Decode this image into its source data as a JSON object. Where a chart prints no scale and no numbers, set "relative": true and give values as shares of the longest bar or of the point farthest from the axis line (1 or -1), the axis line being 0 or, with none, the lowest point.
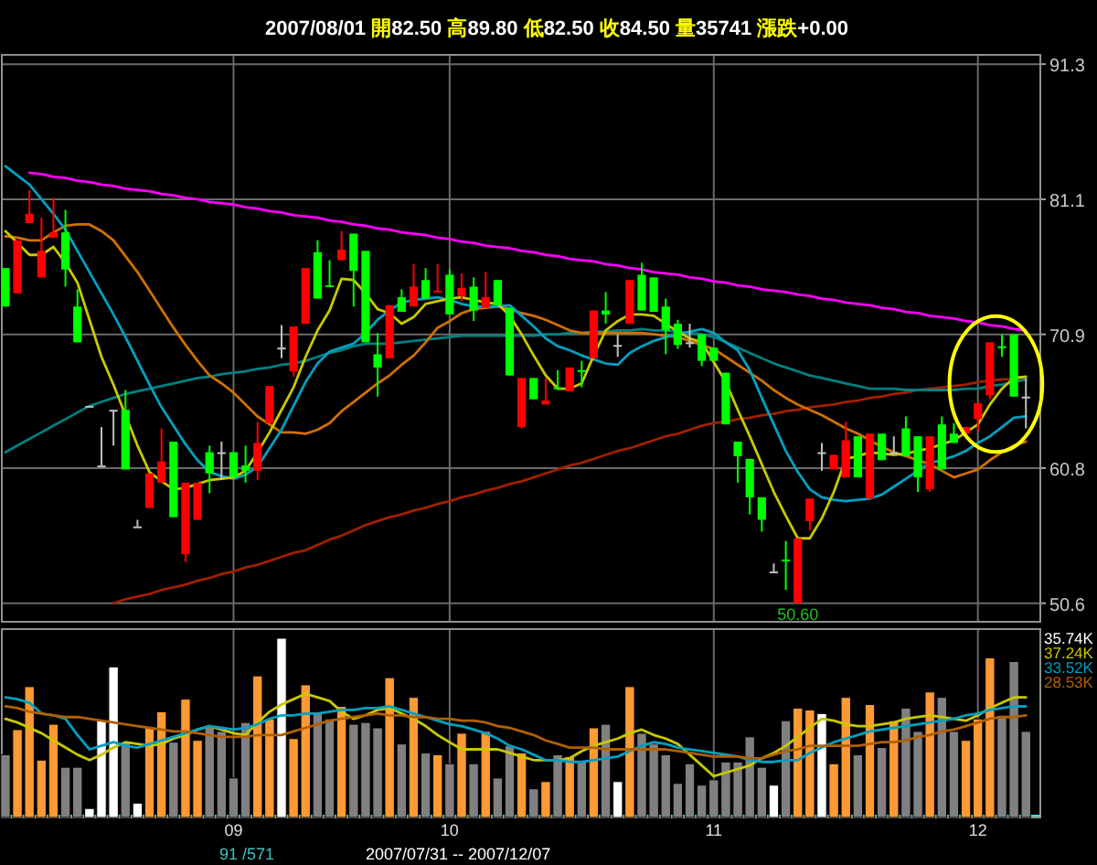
{
  "chart_data": [
    {
      "type": "candlestick",
      "title": "2007/08/01 開82.50 高89.80 低82.50 收84.50 量35741 漲跌+0.00",
      "categories": [
        null,
        null,
        null,
        null,
        null,
        null,
        null,
        null,
        null,
        null,
        null,
        null,
        null,
        null,
        null,
        null,
        null,
        null,
        null,
        "09",
        null,
        null,
        null,
        null,
        null,
        null,
        null,
        null,
        null,
        null,
        null,
        null,
        null,
        null,
        null,
        null,
        null,
        "10",
        null,
        null,
        null,
        null,
        null,
        null,
        null,
        null,
        null,
        null,
        null,
        null,
        null,
        null,
        null,
        null,
        null,
        null,
        null,
        null,
        null,
        "11",
        null,
        null,
        null,
        null,
        null,
        null,
        null,
        null,
        null,
        null,
        null,
        null,
        null,
        null,
        null,
        null,
        null,
        null,
        null,
        null,
        null,
        "12",
        null,
        null,
        null,
        null
      ],
      "ohlc": [
        [
          75.9,
          75.9,
          73.0,
          73.0
        ],
        [
          74.0,
          78.0,
          74.0,
          78.0
        ],
        [
          79.3,
          81.8,
          79.3,
          80.0
        ],
        [
          75.2,
          79.7,
          75.2,
          77.2
        ],
        [
          78.2,
          81.2,
          78.2,
          78.6
        ],
        [
          78.6,
          80.3,
          74.5,
          75.8
        ],
        [
          73.0,
          74.3,
          70.3,
          70.3
        ],
        [
          65.5,
          65.5,
          65.5,
          65.5
        ],
        [
          61.0,
          63.9,
          61.0,
          61.0
        ],
        [
          65.2,
          65.2,
          62.5,
          65.2
        ],
        [
          65.2,
          66.7,
          60.7,
          60.7
        ],
        [
          56.4,
          56.9,
          56.4,
          56.4
        ],
        [
          57.8,
          60.4,
          57.8,
          60.4
        ],
        [
          59.7,
          63.8,
          59.7,
          61.3
        ],
        [
          62.8,
          62.8,
          57.1,
          57.1
        ],
        [
          54.3,
          59.7,
          53.7,
          59.7
        ],
        [
          56.9,
          59.7,
          56.9,
          59.7
        ],
        [
          62.0,
          62.5,
          58.9,
          60.4
        ],
        [
          62.0,
          62.8,
          59.9,
          62.0
        ],
        [
          62.0,
          62.0,
          60.1,
          60.1
        ],
        [
          61.0,
          62.5,
          59.7,
          60.6
        ],
        [
          60.6,
          64.3,
          59.9,
          62.7
        ],
        [
          64.2,
          67.0,
          64.2,
          67.0
        ],
        [
          69.9,
          71.6,
          69.1,
          69.9
        ],
        [
          68.1,
          71.5,
          67.7,
          71.5
        ],
        [
          71.7,
          75.9,
          71.7,
          75.9
        ],
        [
          77.1,
          78.0,
          73.6,
          73.6
        ],
        [
          74.6,
          76.5,
          74.5,
          74.5
        ],
        [
          76.5,
          78.7,
          76.5,
          77.3
        ],
        [
          78.5,
          78.5,
          73.0,
          75.7
        ],
        [
          77.2,
          77.2,
          70.3,
          70.3
        ],
        [
          69.4,
          71.0,
          66.2,
          68.4
        ],
        [
          69.1,
          73.1,
          69.1,
          73.1
        ],
        [
          73.7,
          74.3,
          72.6,
          72.6
        ],
        [
          73.0,
          76.2,
          73.0,
          74.5
        ],
        [
          75.0,
          75.9,
          73.6,
          73.6
        ],
        [
          74.1,
          76.2,
          74.1,
          74.2
        ],
        [
          75.4,
          75.8,
          72.4,
          72.4
        ],
        [
          73.8,
          75.5,
          73.4,
          74.4
        ],
        [
          74.5,
          75.2,
          71.9,
          72.7
        ],
        [
          72.9,
          75.6,
          72.9,
          73.7
        ],
        [
          75.0,
          75.0,
          73.1,
          73.1
        ],
        [
          72.9,
          72.9,
          67.8,
          67.8
        ],
        [
          63.9,
          67.6,
          63.8,
          67.6
        ],
        [
          67.6,
          67.6,
          66.0,
          66.0
        ],
        [
          65.6,
          67.6,
          65.6,
          65.9
        ],
        [
          66.9,
          68.2,
          66.8,
          66.8
        ],
        [
          66.6,
          68.4,
          66.6,
          68.4
        ],
        [
          68.2,
          68.9,
          66.9,
          68.1
        ],
        [
          69.1,
          72.7,
          69.1,
          72.7
        ],
        [
          72.7,
          74.1,
          71.7,
          72.4
        ],
        [
          70.1,
          70.9,
          69.2,
          70.1
        ],
        [
          71.7,
          75.0,
          71.7,
          75.0
        ],
        [
          75.4,
          76.3,
          72.7,
          72.7
        ],
        [
          75.2,
          75.2,
          72.6,
          72.6
        ],
        [
          73.0,
          73.6,
          69.4,
          71.2
        ],
        [
          71.7,
          72.0,
          69.8,
          70.1
        ],
        [
          70.3,
          71.7,
          69.9,
          70.3
        ],
        [
          70.9,
          70.9,
          68.5,
          68.9
        ],
        [
          69.9,
          69.9,
          68.9,
          68.9
        ],
        [
          68.0,
          68.0,
          64.1,
          64.1
        ],
        [
          62.8,
          62.8,
          59.7,
          61.7
        ],
        [
          61.5,
          61.5,
          57.3,
          58.6
        ],
        [
          58.6,
          58.6,
          56.0,
          56.9
        ],
        [
          53.0,
          53.6,
          53.0,
          53.0
        ],
        [
          53.9,
          55.3,
          51.6,
          53.8
        ],
        [
          50.6,
          55.5,
          50.6,
          55.5
        ],
        [
          56.8,
          58.5,
          56.1,
          58.5
        ],
        [
          62.0,
          62.7,
          60.6,
          62.0
        ],
        [
          60.7,
          61.8,
          60.7,
          61.8
        ],
        [
          60.1,
          64.3,
          60.1,
          62.9
        ],
        [
          63.2,
          63.2,
          60.1,
          60.1
        ],
        [
          58.5,
          63.4,
          58.5,
          63.4
        ],
        [
          63.4,
          63.4,
          61.4,
          61.4
        ],
        [
          62.0,
          63.2,
          62.0,
          62.0
        ],
        [
          63.8,
          64.7,
          61.7,
          61.7
        ],
        [
          63.2,
          63.2,
          59.0,
          60.1
        ],
        [
          59.2,
          63.2,
          59.0,
          63.2
        ],
        [
          64.1,
          64.7,
          60.7,
          60.7
        ],
        [
          63.4,
          64.2,
          62.7,
          62.7
        ],
        [
          63.4,
          63.9,
          63.4,
          63.9
        ],
        [
          64.5,
          65.7,
          63.6,
          65.7
        ],
        [
          66.3,
          70.3,
          66.0,
          70.3
        ],
        [
          70.0,
          70.9,
          69.2,
          69.9
        ],
        [
          70.9,
          70.9,
          66.2,
          66.2
        ],
        [
          66.2,
          67.6,
          63.8,
          66.2
        ]
      ],
      "colors": [
        "#00ff00",
        "#ff0000",
        "#ff0000",
        "#ff0000",
        "#ff0000",
        "#00ff00",
        "#00ff00",
        "#c0c0c0",
        "#c0c0c0",
        "#c0c0c0",
        "#00ff00",
        "#c0c0c0",
        "#ff0000",
        "#ff0000",
        "#00ff00",
        "#ff0000",
        "#ff0000",
        "#00ff00",
        "#c0c0c0",
        "#00ff00",
        "#00ff00",
        "#ff0000",
        "#ff0000",
        "#c0c0c0",
        "#ff0000",
        "#ff0000",
        "#00ff00",
        "#00ff00",
        "#ff0000",
        "#00ff00",
        "#00ff00",
        "#00ff00",
        "#ff0000",
        "#00ff00",
        "#ff0000",
        "#00ff00",
        "#ff0000",
        "#00ff00",
        "#ff0000",
        "#00ff00",
        "#ff0000",
        "#00ff00",
        "#00ff00",
        "#ff0000",
        "#00ff00",
        "#ff0000",
        "#00ff00",
        "#ff0000",
        "#00ff00",
        "#ff0000",
        "#00ff00",
        "#c0c0c0",
        "#ff0000",
        "#00ff00",
        "#00ff00",
        "#00ff00",
        "#00ff00",
        "#c0c0c0",
        "#00ff00",
        "#00ff00",
        "#00ff00",
        "#00ff00",
        "#00ff00",
        "#00ff00",
        "#c0c0c0",
        "#00ff00",
        "#ff0000",
        "#ff0000",
        "#c0c0c0",
        "#ff0000",
        "#ff0000",
        "#00ff00",
        "#ff0000",
        "#00ff00",
        "#c0c0c0",
        "#00ff00",
        "#00ff00",
        "#ff0000",
        "#00ff00",
        "#00ff00",
        "#ff0000",
        "#ff0000",
        "#ff0000",
        "#00ff00",
        "#00ff00",
        "#c0c0c0"
      ],
      "series": [
        {
          "type": "line",
          "color": "#a02000",
          "values": [
            null,
            null,
            null,
            null,
            null,
            null,
            null,
            null,
            null,
            50.6,
            50.9,
            51.1,
            51.3,
            51.6,
            51.8,
            52.0,
            52.3,
            52.5,
            52.8,
            53.0,
            53.3,
            53.5,
            53.8,
            54.1,
            54.4,
            54.6,
            55.0,
            55.4,
            55.7,
            56.1,
            56.5,
            56.8,
            57.1,
            57.3,
            57.6,
            57.8,
            58.1,
            58.3,
            58.6,
            58.8,
            59.1,
            59.3,
            59.6,
            59.8,
            60.1,
            60.4,
            60.7,
            61.0,
            61.2,
            61.5,
            61.8,
            62.1,
            62.3,
            62.6,
            62.9,
            63.2,
            63.4,
            63.7,
            64.0,
            64.2,
            64.3,
            64.5,
            64.6,
            64.8,
            64.9,
            65.1,
            65.2,
            65.4,
            65.5,
            65.6,
            65.8,
            65.9,
            66.1,
            66.2,
            66.4,
            66.5,
            66.7,
            66.8,
            66.9,
            67.0,
            67.1,
            67.3,
            67.4,
            67.5,
            67.5,
            67.5
          ]
        },
        {
          "type": "line",
          "color": "#008080",
          "values": [
            62.0,
            62.5,
            63.0,
            63.5,
            64.0,
            64.5,
            65.0,
            65.5,
            65.8,
            66.1,
            66.4,
            66.6,
            66.8,
            67.0,
            67.2,
            67.4,
            67.6,
            67.7,
            67.9,
            68.0,
            68.1,
            68.3,
            68.4,
            68.6,
            68.7,
            68.9,
            69.2,
            69.5,
            69.7,
            70.0,
            70.2,
            70.2,
            70.2,
            70.3,
            70.4,
            70.5,
            70.6,
            70.7,
            70.8,
            70.8,
            70.8,
            70.8,
            70.8,
            70.8,
            70.8,
            70.9,
            70.9,
            71.0,
            71.0,
            71.1,
            71.1,
            71.2,
            71.2,
            71.3,
            71.2,
            71.2,
            71.1,
            71.0,
            70.9,
            70.7,
            70.3,
            69.9,
            69.5,
            69.1,
            68.7,
            68.4,
            68.1,
            67.8,
            67.6,
            67.4,
            67.2,
            67.0,
            66.8,
            66.8,
            66.8,
            66.7,
            66.7,
            66.7,
            66.7,
            66.7,
            66.8,
            66.8,
            67.0,
            67.1,
            67.3,
            67.5
          ]
        },
        {
          "type": "line",
          "color": "#d07000",
          "values": [
            78.3,
            78.2,
            78.0,
            78.0,
            78.6,
            79.1,
            79.2,
            79.2,
            78.7,
            78.0,
            76.8,
            75.6,
            74.2,
            72.8,
            71.4,
            70.1,
            68.9,
            67.8,
            67.2,
            66.5,
            65.6,
            64.7,
            64.1,
            63.5,
            63.5,
            63.4,
            63.7,
            64.2,
            65.1,
            65.8,
            66.5,
            67.2,
            67.8,
            68.6,
            69.3,
            70.3,
            71.4,
            71.9,
            72.5,
            72.8,
            72.9,
            73.0,
            72.8,
            72.5,
            72.3,
            72.0,
            71.6,
            71.2,
            71.0,
            71.0,
            71.0,
            71.0,
            71.0,
            71.0,
            70.9,
            70.8,
            70.7,
            70.4,
            70.1,
            69.8,
            69.2,
            68.6,
            68.0,
            67.4,
            66.7,
            66.1,
            65.6,
            65.2,
            64.8,
            64.3,
            63.8,
            63.4,
            62.9,
            62.4,
            62.0,
            61.7,
            61.4,
            61.1,
            60.6,
            60.1,
            60.4,
            60.7,
            61.4,
            62.0,
            62.5,
            62.8
          ]
        },
        {
          "type": "line",
          "color": "#00a0c0",
          "values": [
            83.6,
            82.9,
            82.2,
            81.1,
            80.0,
            78.8,
            77.2,
            75.6,
            74.0,
            72.4,
            70.7,
            68.9,
            67.1,
            65.4,
            64.0,
            62.6,
            61.4,
            60.5,
            60.2,
            60.0,
            60.3,
            60.9,
            62.3,
            63.7,
            65.5,
            67.3,
            68.7,
            69.6,
            69.9,
            70.2,
            71.0,
            72.0,
            72.7,
            73.3,
            73.5,
            73.6,
            73.7,
            73.5,
            73.2,
            73.0,
            73.0,
            73.0,
            73.1,
            72.3,
            71.5,
            70.6,
            70.0,
            69.7,
            69.3,
            69.0,
            68.7,
            68.6,
            69.5,
            70.0,
            70.4,
            70.7,
            70.9,
            71.1,
            71.3,
            71.0,
            70.3,
            69.7,
            68.2,
            66.1,
            64.1,
            62.1,
            60.5,
            59.2,
            58.6,
            58.4,
            58.3,
            58.4,
            58.5,
            58.8,
            59.4,
            60.0,
            60.6,
            61.2,
            61.4,
            61.7,
            62.1,
            62.7,
            63.2,
            63.9,
            64.6,
            64.7
          ]
        },
        {
          "type": "line",
          "color": "#c8c800",
          "values": [
            78.7,
            77.8,
            76.9,
            76.9,
            77.5,
            76.3,
            74.8,
            72.0,
            69.2,
            67.1,
            64.8,
            62.5,
            60.5,
            59.8,
            59.2,
            59.3,
            59.6,
            59.9,
            60.0,
            60.1,
            60.6,
            62.0,
            63.5,
            65.2,
            66.9,
            69.2,
            71.2,
            72.7,
            75.1,
            75.0,
            74.0,
            72.8,
            72.5,
            71.7,
            72.2,
            73.2,
            73.4,
            73.6,
            73.7,
            73.5,
            73.3,
            73.2,
            72.3,
            70.9,
            69.3,
            67.8,
            66.8,
            66.8,
            67.2,
            69.3,
            71.2,
            71.9,
            72.4,
            72.4,
            72.3,
            71.7,
            71.1,
            70.6,
            70.3,
            68.8,
            67.3,
            65.2,
            63.2,
            61.1,
            59.0,
            57.2,
            55.5,
            55.5,
            57.0,
            59.0,
            61.5,
            61.7,
            62.0,
            61.9,
            61.8,
            61.9,
            62.1,
            62.3,
            62.6,
            62.9,
            63.5,
            64.1,
            65.6,
            66.8,
            67.6,
            67.7
          ]
        },
        {
          "type": "line",
          "color": "#ff00ff",
          "values": [
            null,
            null,
            83.1,
            83.0,
            82.8,
            82.7,
            82.5,
            82.4,
            82.2,
            82.1,
            81.9,
            81.8,
            81.7,
            81.5,
            81.4,
            81.2,
            81.1,
            80.9,
            80.8,
            80.7,
            80.5,
            80.4,
            80.2,
            80.1,
            79.9,
            79.8,
            79.7,
            79.5,
            79.4,
            79.2,
            79.1,
            78.9,
            78.8,
            78.6,
            78.5,
            78.4,
            78.2,
            78.1,
            77.9,
            77.8,
            77.6,
            77.5,
            77.4,
            77.2,
            77.1,
            76.9,
            76.8,
            76.6,
            76.5,
            76.4,
            76.2,
            76.1,
            75.9,
            75.8,
            75.6,
            75.5,
            75.4,
            75.2,
            75.1,
            74.9,
            74.8,
            74.6,
            74.5,
            74.3,
            74.2,
            74.1,
            73.9,
            73.8,
            73.6,
            73.5,
            73.3,
            73.2,
            73.1,
            72.9,
            72.8,
            72.6,
            72.5,
            72.3,
            72.2,
            72.1,
            71.9,
            71.8,
            71.6,
            71.5,
            71.3,
            71.2
          ]
        }
      ],
      "ylim": [
        49.2,
        92.0
      ],
      "yticks": [
        50.6,
        60.8,
        70.9,
        81.1,
        91.3
      ],
      "grid": true,
      "tick_labels": "y",
      "annotations": [
        {
          "text": "50.60",
          "y": 50.6
        }
      ]
    },
    {
      "type": "bar",
      "relative": true,
      "categories": [
        null,
        null,
        null,
        null,
        null,
        null,
        null,
        null,
        null,
        null,
        null,
        null,
        null,
        null,
        null,
        null,
        null,
        null,
        null,
        "09",
        null,
        null,
        null,
        null,
        null,
        null,
        null,
        null,
        null,
        null,
        null,
        null,
        null,
        null,
        null,
        null,
        null,
        "10",
        null,
        null,
        null,
        null,
        null,
        null,
        null,
        null,
        null,
        null,
        null,
        null,
        null,
        null,
        null,
        null,
        null,
        null,
        null,
        null,
        null,
        "11",
        null,
        null,
        null,
        null,
        null,
        null,
        null,
        null,
        null,
        null,
        null,
        null,
        null,
        null,
        null,
        null,
        null,
        null,
        null,
        null,
        null,
        "12",
        null,
        null,
        null,
        null
      ],
      "series": [
        {
          "name": "35.74K",
          "color": "#ffffff",
          "values": [
            0.35,
            0.49,
            0.73,
            0.32,
            0.52,
            0.28,
            0.28,
            0.05,
            0.54,
            0.84,
            0.42,
            0.08,
            0.5,
            0.59,
            0.42,
            0.66,
            0.43,
            0.51,
            0.48,
            0.22,
            0.53,
            0.79,
            0.55,
            1,
            0.44,
            0.74,
            0.59,
            0.55,
            0.62,
            0.52,
            0.53,
            0.5,
            0.78,
            0.41,
            0.67,
            0.36,
            0.35,
            0.3,
            0.47,
            0.3,
            0.48,
            0.22,
            0.4,
            0.36,
            0.16,
            0.2,
            0.35,
            0.34,
            0.31,
            0.5,
            0.52,
            0.2,
            0.73,
            0.47,
            0.41,
            0.35,
            0.19,
            0.3,
            0.18,
            0.21,
            0.31,
            0.31,
            0.45,
            0.28,
            0.18,
            0.54,
            0.61,
            0.6,
            0.58,
            0.3,
            0.67,
            0.35,
            0.63,
            0.39,
            0.54,
            0.61,
            0.48,
            0.7,
            0.67,
            0.48,
            0.43,
            0.55,
            0.89,
            0.57,
            0.87,
            0.48
          ],
          "colors": [
            "#808080",
            "#ff9933",
            "#ff9933",
            "#ff9933",
            "#ff9933",
            "#808080",
            "#808080",
            "#ffffff",
            "#ffffff",
            "#ffffff",
            "#808080",
            "#ffffff",
            "#ff9933",
            "#ff9933",
            "#808080",
            "#ff9933",
            "#ff9933",
            "#808080",
            "#808080",
            "#808080",
            "#808080",
            "#ff9933",
            "#ff9933",
            "#ffffff",
            "#ff9933",
            "#ff9933",
            "#808080",
            "#808080",
            "#ff9933",
            "#808080",
            "#808080",
            "#808080",
            "#ff9933",
            "#808080",
            "#ff9933",
            "#808080",
            "#ff9933",
            "#808080",
            "#ff9933",
            "#808080",
            "#ff9933",
            "#808080",
            "#808080",
            "#ff9933",
            "#808080",
            "#ff9933",
            "#808080",
            "#ff9933",
            "#808080",
            "#ff9933",
            "#808080",
            "#ffffff",
            "#ff9933",
            "#808080",
            "#808080",
            "#808080",
            "#808080",
            "#808080",
            "#808080",
            "#808080",
            "#808080",
            "#808080",
            "#808080",
            "#808080",
            "#ffffff",
            "#808080",
            "#ff9933",
            "#ff9933",
            "#ffffff",
            "#ff9933",
            "#ff9933",
            "#808080",
            "#ff9933",
            "#808080",
            "#ff9933",
            "#808080",
            "#808080",
            "#ff9933",
            "#808080",
            "#808080",
            "#ff9933",
            "#ff9933",
            "#ff9933",
            "#808080",
            "#808080",
            "#808080"
          ]
        },
        {
          "type": "line",
          "name": "37.24K",
          "color": "#c8c800",
          "values": [
            0.55,
            0.53,
            0.5,
            0.47,
            0.43,
            0.39,
            0.35,
            0.32,
            0.35,
            0.39,
            0.42,
            0.41,
            0.4,
            0.41,
            0.44,
            0.46,
            0.49,
            0.51,
            0.49,
            0.47,
            0.46,
            0.53,
            0.59,
            0.63,
            0.66,
            0.69,
            0.67,
            0.65,
            0.59,
            0.55,
            0.57,
            0.6,
            0.61,
            0.58,
            0.55,
            0.51,
            0.46,
            0.42,
            0.38,
            0.38,
            0.38,
            0.38,
            0.36,
            0.34,
            0.32,
            0.32,
            0.32,
            0.33,
            0.37,
            0.4,
            0.42,
            0.44,
            0.47,
            0.49,
            0.46,
            0.44,
            0.41,
            0.35,
            0.29,
            0.23,
            0.25,
            0.27,
            0.29,
            0.33,
            0.36,
            0.4,
            0.45,
            0.5,
            0.55,
            0.54,
            0.52,
            0.51,
            0.51,
            0.52,
            0.53,
            0.55,
            0.56,
            0.57,
            0.56,
            0.55,
            0.54,
            0.57,
            0.61,
            0.64,
            0.67,
            0.67
          ]
        },
        {
          "type": "line",
          "name": "33.52K",
          "color": "#00a0c0",
          "values": [
            0.67,
            0.66,
            0.64,
            0.58,
            0.57,
            0.55,
            0.46,
            0.38,
            0.4,
            0.42,
            0.4,
            0.39,
            0.41,
            0.43,
            0.45,
            0.47,
            0.49,
            0.51,
            0.5,
            0.49,
            0.5,
            0.52,
            0.55,
            0.57,
            0.57,
            0.58,
            0.58,
            0.59,
            0.6,
            0.6,
            0.61,
            0.61,
            0.62,
            0.6,
            0.58,
            0.56,
            0.54,
            0.52,
            0.51,
            0.49,
            0.47,
            0.44,
            0.4,
            0.38,
            0.35,
            0.32,
            0.32,
            0.31,
            0.31,
            0.32,
            0.33,
            0.34,
            0.37,
            0.4,
            0.42,
            0.41,
            0.39,
            0.38,
            0.37,
            0.36,
            0.35,
            0.34,
            0.32,
            0.31,
            0.31,
            0.32,
            0.32,
            0.36,
            0.39,
            0.42,
            0.44,
            0.46,
            0.48,
            0.49,
            0.5,
            0.51,
            0.52,
            0.53,
            0.54,
            0.55,
            0.57,
            0.58,
            0.6,
            0.61,
            0.62,
            0.62
          ]
        },
        {
          "type": "line",
          "name": "28.53K",
          "color": "#b06000",
          "values": [
            0.62,
            0.61,
            0.59,
            0.58,
            0.57,
            0.56,
            0.56,
            0.55,
            0.54,
            0.53,
            0.52,
            0.51,
            0.5,
            0.49,
            0.48,
            0.48,
            0.47,
            0.46,
            0.45,
            0.45,
            0.45,
            0.46,
            0.46,
            0.46,
            0.48,
            0.5,
            0.52,
            0.54,
            0.55,
            0.56,
            0.57,
            0.58,
            0.57,
            0.57,
            0.56,
            0.56,
            0.55,
            0.55,
            0.54,
            0.54,
            0.53,
            0.51,
            0.5,
            0.48,
            0.46,
            0.43,
            0.41,
            0.39,
            0.39,
            0.39,
            0.38,
            0.38,
            0.38,
            0.38,
            0.38,
            0.38,
            0.37,
            0.36,
            0.35,
            0.34,
            0.34,
            0.34,
            0.33,
            0.33,
            0.35,
            0.37,
            0.38,
            0.4,
            0.4,
            0.4,
            0.4,
            0.4,
            0.41,
            0.42,
            0.42,
            0.43,
            0.45,
            0.46,
            0.48,
            0.49,
            0.51,
            0.53,
            0.55,
            0.56,
            0.56,
            0.57
          ]
        }
      ],
      "grid": "x",
      "legend": "top right",
      "tick_labels": "x",
      "annotations": [
        "91 /571",
        "2007/07/31 -- 2007/12/07"
      ]
    }
  ]
}
